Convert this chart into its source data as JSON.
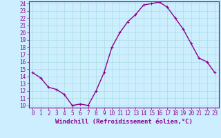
{
  "x": [
    0,
    1,
    2,
    3,
    4,
    5,
    6,
    7,
    8,
    9,
    10,
    11,
    12,
    13,
    14,
    15,
    16,
    17,
    18,
    19,
    20,
    21,
    22,
    23
  ],
  "y": [
    14.5,
    13.8,
    12.5,
    12.2,
    11.5,
    10.0,
    10.2,
    10.0,
    12.0,
    14.5,
    18.0,
    20.0,
    21.5,
    22.5,
    23.8,
    24.0,
    24.2,
    23.5,
    22.0,
    20.5,
    18.5,
    16.5,
    16.0,
    14.5
  ],
  "line_color": "#8b008b",
  "marker": "+",
  "bg_color": "#cceeff",
  "grid_color": "#aadddd",
  "xlabel": "Windchill (Refroidissement éolien,°C)",
  "xlabel_color": "#8b008b",
  "ylim_min": 10,
  "ylim_max": 24,
  "xlim_min": 0,
  "xlim_max": 23,
  "yticks": [
    10,
    11,
    12,
    13,
    14,
    15,
    16,
    17,
    18,
    19,
    20,
    21,
    22,
    23,
    24
  ],
  "xticks": [
    0,
    1,
    2,
    3,
    4,
    5,
    6,
    7,
    8,
    9,
    10,
    11,
    12,
    13,
    14,
    15,
    16,
    17,
    18,
    19,
    20,
    21,
    22,
    23
  ],
  "tick_color": "#8b008b",
  "axis_color": "#8b008b",
  "fontsize_tick": 5.5,
  "fontsize_label": 6.5,
  "linewidth": 1.0,
  "markersize": 3,
  "markeredgewidth": 0.8
}
